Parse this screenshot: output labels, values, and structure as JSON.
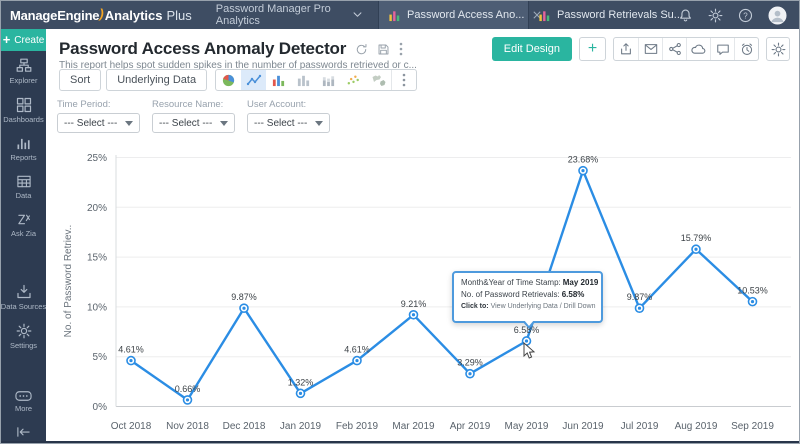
{
  "colors": {
    "accent_teal": "#2ab5a0",
    "navbar_bg": "#3e4d63",
    "sidebar_bg": "#2d3b51",
    "line_blue": "#2b8de4",
    "tooltip_border": "#4e9add"
  },
  "navbar": {
    "logo": {
      "part1": "ManageEngine",
      "swoosh": ")",
      "part2": "Analytics",
      "part3": "Plus"
    },
    "workspace": {
      "label": "Password Manager Pro Analytics",
      "icon": "chevron-down-icon"
    },
    "tabs": [
      {
        "label": "Password Access Ano...",
        "icon": "mini-bar-chart-icon",
        "active": true,
        "closable": true
      },
      {
        "label": "Password Retrievals Su...",
        "icon": "mini-bar-chart-icon",
        "active": false,
        "closable": false
      }
    ],
    "right_icons": [
      "bell-icon",
      "gear-icon",
      "help-icon",
      "avatar-icon"
    ]
  },
  "sidebar": {
    "create_plus": "+",
    "create_label": "Create",
    "items": [
      {
        "label": "Explorer",
        "icon": "explorer-icon"
      },
      {
        "label": "Dashboards",
        "icon": "dashboards-icon"
      },
      {
        "label": "Reports",
        "icon": "reports-icon"
      },
      {
        "label": "Data",
        "icon": "data-table-icon"
      },
      {
        "label": "Ask Zia",
        "icon": "ask-zia-icon"
      },
      {
        "label": "Data Sources",
        "icon": "data-sources-icon"
      },
      {
        "label": "Settings",
        "icon": "settings-icon"
      },
      {
        "label": "More",
        "icon": "more-icon"
      }
    ],
    "collapse_icon": "collapse-icon"
  },
  "report": {
    "title": "Password Access Anomaly Detector",
    "subtitle": "This report helps spot sudden spikes in the number of passwords retrieved or c...",
    "title_icons": [
      "refresh-icon",
      "save-icon",
      "kebab-icon"
    ],
    "actions": {
      "edit_design": "Edit Design",
      "add": "+",
      "icon_group": [
        "export-icon",
        "email-icon",
        "share-icon",
        "publish-icon",
        "comment-icon",
        "alert-icon"
      ],
      "settings_icon": "gear-icon"
    }
  },
  "toolbar": {
    "sort_label": "Sort",
    "underlying_label": "Underlying Data",
    "chart_types": [
      {
        "icon": "pie-chart-icon",
        "selected": false
      },
      {
        "icon": "line-chart-icon",
        "selected": true
      },
      {
        "icon": "bar-chart-color-icon",
        "selected": false
      },
      {
        "icon": "bar-chart-gray-icon",
        "selected": false
      },
      {
        "icon": "stacked-bar-icon",
        "selected": false
      },
      {
        "icon": "scatter-plot-icon",
        "selected": false
      },
      {
        "icon": "geo-map-icon",
        "selected": false
      },
      {
        "icon": "kebab-icon",
        "selected": false,
        "divider": true
      }
    ]
  },
  "filters": [
    {
      "label": "Time Period:",
      "value": "--- Select ---",
      "caret": "caret-down-icon"
    },
    {
      "label": "Resource Name:",
      "value": "--- Select ---",
      "caret": "caret-down-icon"
    },
    {
      "label": "User Account:",
      "value": "--- Select ---",
      "caret": "caret-down-icon"
    }
  ],
  "chart_data": {
    "type": "line",
    "x": [
      "Oct 2018",
      "Nov 2018",
      "Dec 2018",
      "Jan 2019",
      "Feb 2019",
      "Mar 2019",
      "Apr 2019",
      "May 2019",
      "Jun 2019",
      "Jul 2019",
      "Aug 2019",
      "Sep 2019"
    ],
    "series": [
      {
        "name": "No. of Password Retrievals",
        "values": [
          4.61,
          0.66,
          9.87,
          1.32,
          4.61,
          9.21,
          3.29,
          6.58,
          23.68,
          9.87,
          15.79,
          10.53
        ]
      }
    ],
    "point_labels": [
      "4.61%",
      "0.66%",
      "9.87%",
      "1.32%",
      "4.61%",
      "9.21%",
      "3.29%",
      "6.58%",
      "23.68%",
      "9.87%",
      "15.79%",
      "10.53%"
    ],
    "ylabel": "No. of Password Retriev..",
    "yticks": [
      "0%",
      "5%",
      "10%",
      "15%",
      "20%",
      "25%"
    ],
    "ylim": [
      0,
      25
    ],
    "grid": true,
    "legend": "none"
  },
  "tooltip": {
    "line1_label": "Month&Year of Time Stamp:",
    "line1_value": "May 2019",
    "line2_label": "No. of Password Retrievals:",
    "line2_value": "6.58%",
    "line3_label": "Click to:",
    "line3_value": "View Underlying Data / Drill Down"
  }
}
